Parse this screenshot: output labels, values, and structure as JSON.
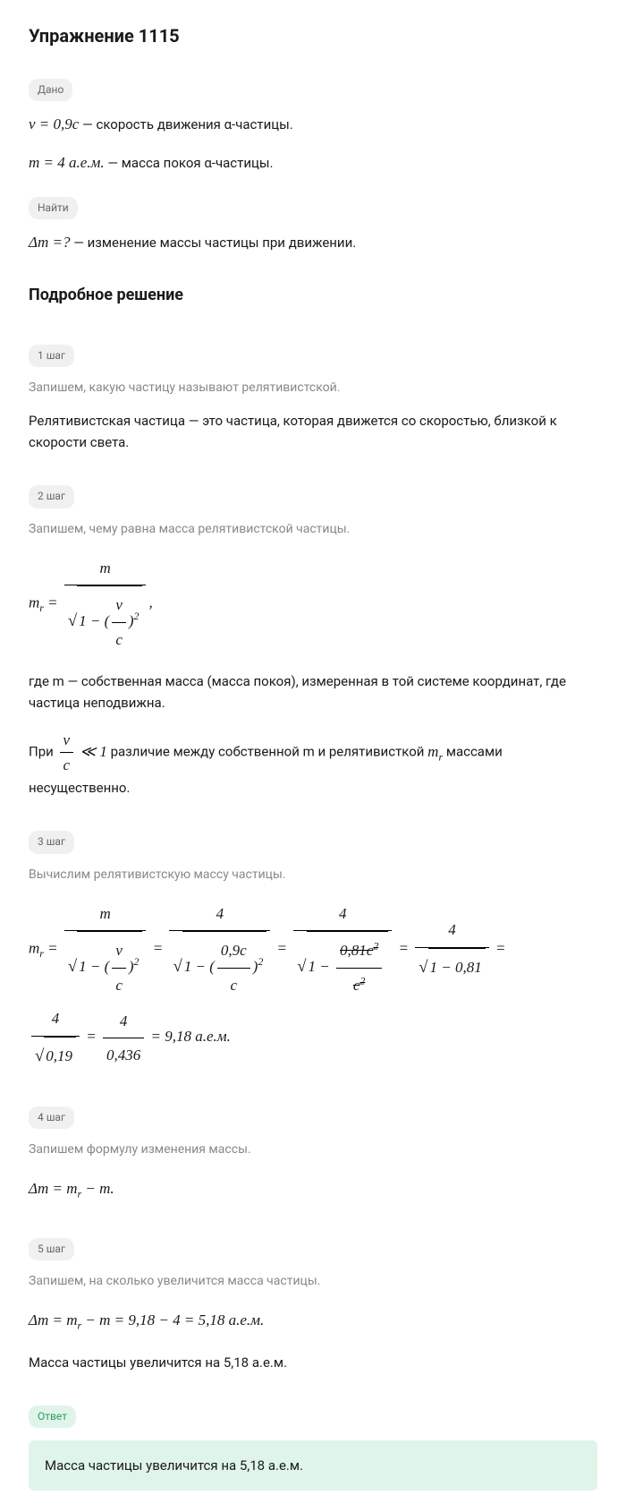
{
  "title": "Упражнение 1115",
  "given_badge": "Дано",
  "given_line1_formula": "v = 0,9c",
  "given_line1_text": " — скорость движения α-частицы.",
  "given_line2_formula": "m = 4 а.е.м.",
  "given_line2_text": " — масса покоя α-частицы.",
  "find_badge": "Найти",
  "find_line_formula": "Δm =?",
  "find_line_text": " — изменение массы частицы при движении.",
  "solution_title": "Подробное решение",
  "steps": [
    {
      "badge": "1 шаг",
      "hint": "Запишем, какую частицу называют релятивистской.",
      "text": "Релятивистская частица — это частица, которая движется со скоростью, близкой к скорости света."
    },
    {
      "badge": "2 шаг",
      "hint": "Запишем, чему равна масса релятивистской частицы.",
      "formula_mr": true,
      "text1": "где m — собственная масса (масса покоя), измеренная в той системе координат, где частица неподвижна.",
      "text2_pre": "При ",
      "text2_mid": " различие между собственной m и релятивисткой ",
      "text2_post": " массами несущественно."
    },
    {
      "badge": "3 шаг",
      "hint": "Вычислим релятивистскую массу частицы.",
      "calc": true
    },
    {
      "badge": "4 шаг",
      "hint": "Запишем формулу изменения массы.",
      "formula_delta_def": "Δm = m",
      "formula_delta_sub": "r",
      "formula_delta_post": " − m."
    },
    {
      "badge": "5 шаг",
      "hint": "Запишем, на сколько увеличится масса частицы.",
      "calc_delta": "Δm = m",
      "calc_delta_sub": "r",
      "calc_delta_post": " − m = 9,18 − 4 = 5,18 а.е.м.",
      "result_text": "Масса частицы увеличится на 5,18 а.е.м."
    }
  ],
  "answer_badge": "Ответ",
  "answer_text": "Масса частицы увеличится на 5,18 а.е.м.",
  "calc_values": {
    "num_m": "m",
    "num_4": "4",
    "den_vc": "v",
    "den_c": "c",
    "den_09c": "0,9c",
    "den_081c2": "0,81c",
    "den_c2": "c",
    "val_081": "0,81",
    "val_019": "0,19",
    "val_0436": "0,436",
    "val_918": "9,18 а.е.м."
  }
}
